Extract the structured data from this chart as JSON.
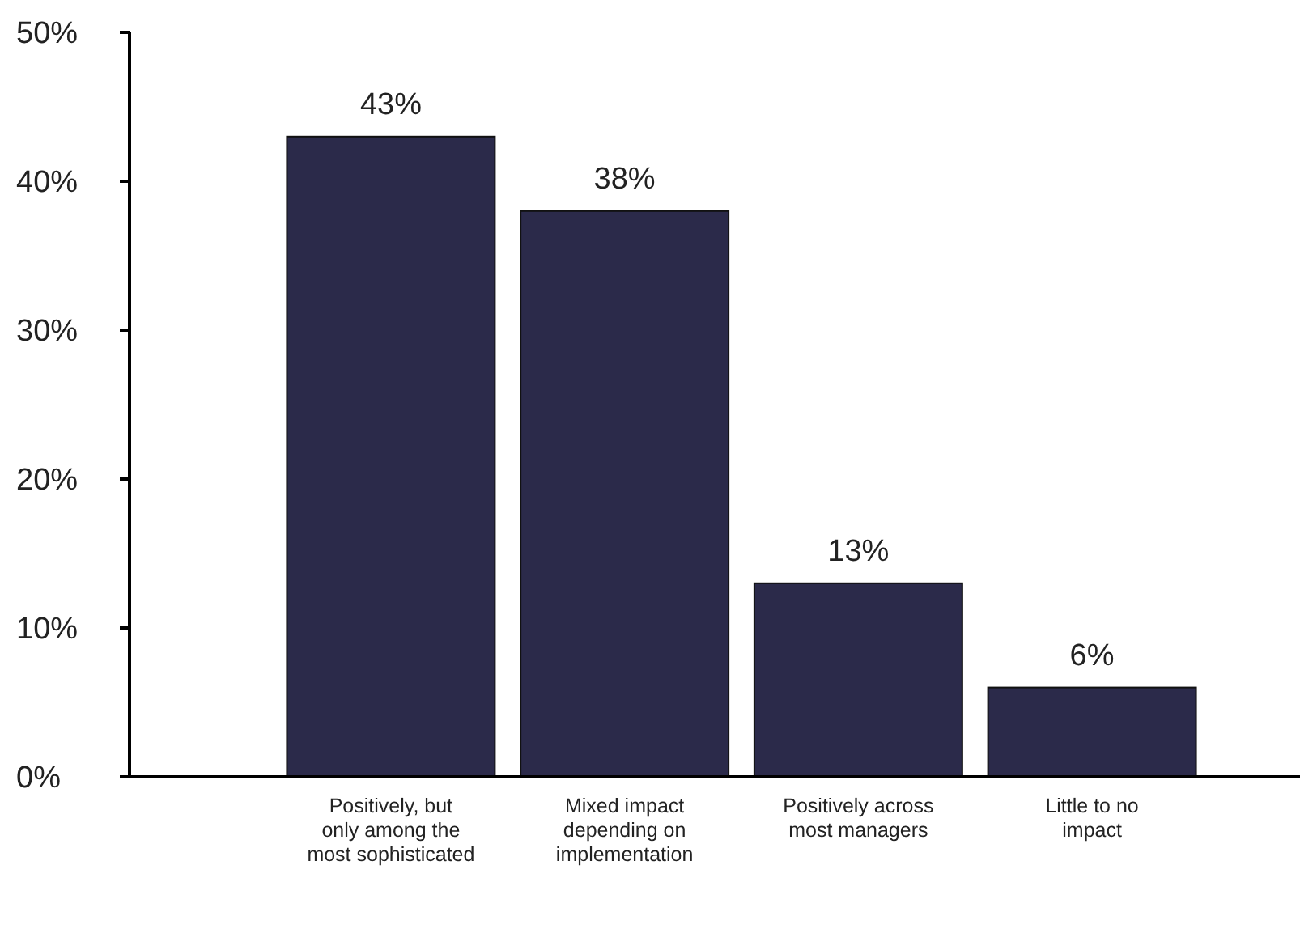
{
  "chart_data": {
    "type": "bar",
    "categories": [
      "Positively, but only among the most sophisticated",
      "Mixed impact depending on implementation",
      "Positively across most managers",
      "Little to no impact"
    ],
    "values": [
      43,
      38,
      13,
      6
    ],
    "color": "#2b2a4a",
    "ylim": [
      0,
      50
    ],
    "yticks": [
      {
        "value": 0,
        "label": "0%"
      },
      {
        "value": 10,
        "label": "10%"
      },
      {
        "value": 20,
        "label": "20%"
      },
      {
        "value": 30,
        "label": "30%"
      },
      {
        "value": 40,
        "label": "40%"
      },
      {
        "value": 50,
        "label": "50%"
      }
    ],
    "data_labels": true,
    "value_labels": [
      "43%",
      "38%",
      "13%",
      "6%"
    ]
  }
}
